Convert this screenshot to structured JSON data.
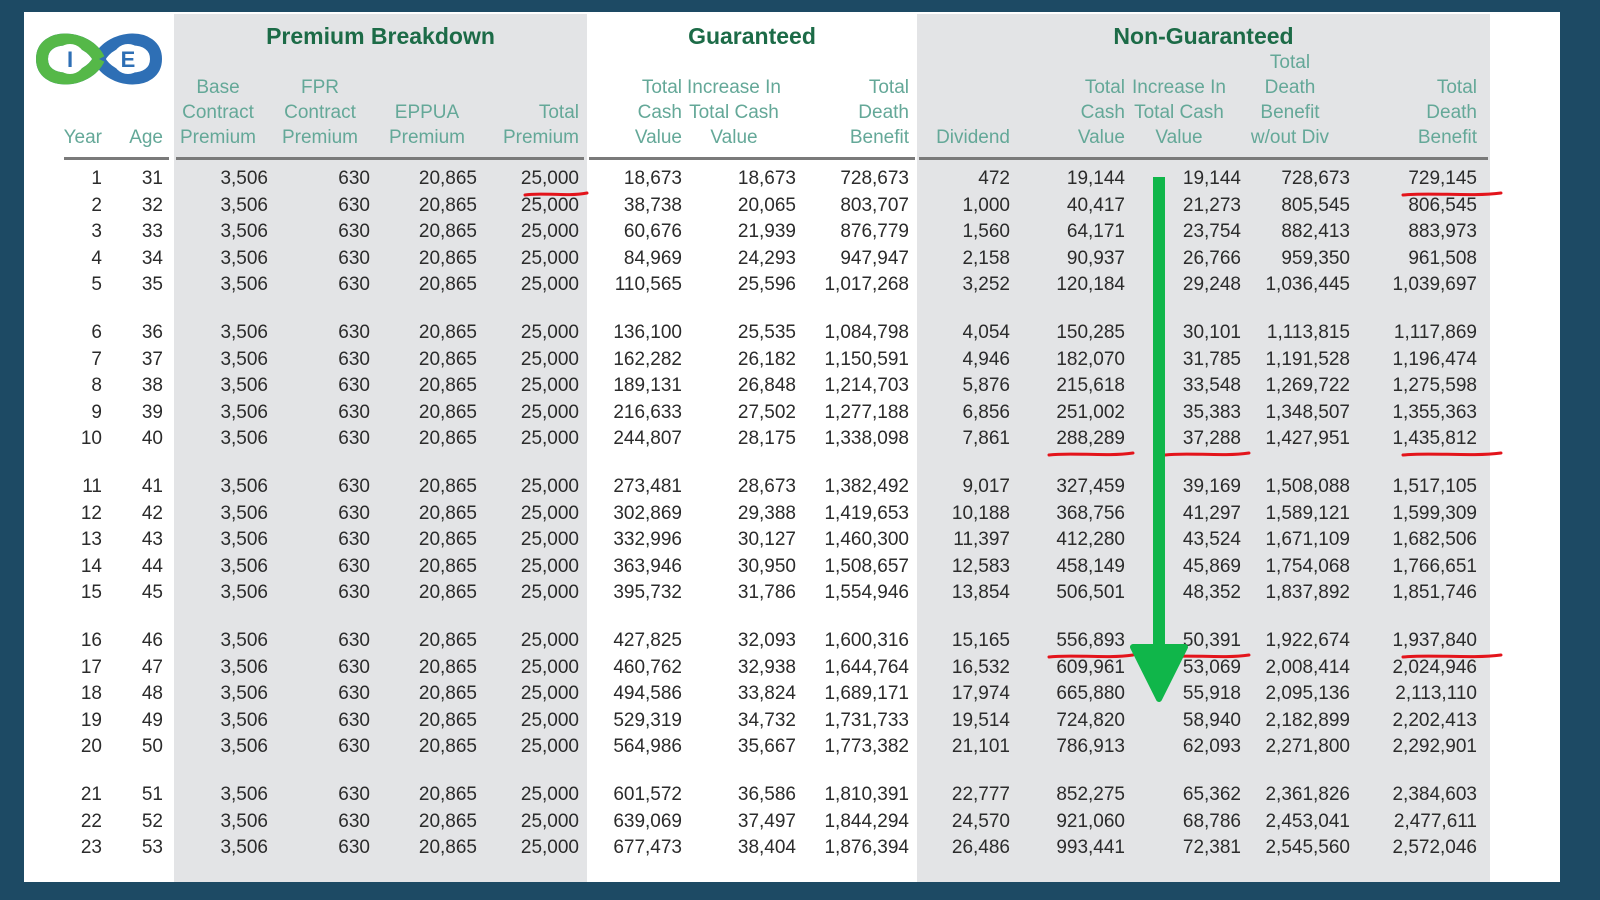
{
  "group_headers": {
    "premium": "Premium Breakdown",
    "guaranteed": "Guaranteed",
    "non_guaranteed": "Non-Guaranteed"
  },
  "logo": {
    "left_letter": "I",
    "right_letter": "E"
  },
  "columns": [
    {
      "key": "year",
      "label": "Year"
    },
    {
      "key": "age",
      "label": "Age"
    },
    {
      "key": "base",
      "label": "Base\nContract\nPremium"
    },
    {
      "key": "fpr",
      "label": "FPR\nContract\nPremium"
    },
    {
      "key": "eppua",
      "label": "EPPUA\nPremium"
    },
    {
      "key": "total_premium",
      "label": "Total\nPremium"
    },
    {
      "key": "g_cash",
      "label": "Total\nCash\nValue"
    },
    {
      "key": "g_increase",
      "label": "Increase In\nTotal Cash\nValue"
    },
    {
      "key": "g_death",
      "label": "Total\nDeath\nBenefit"
    },
    {
      "key": "dividend",
      "label": "Dividend"
    },
    {
      "key": "ng_cash",
      "label": "Total\nCash\nValue"
    },
    {
      "key": "ng_increase",
      "label": "Increase In\nTotal Cash\nValue"
    },
    {
      "key": "ng_death_wo_div",
      "label": "Total\nDeath\nBenefit\nw/out Div"
    },
    {
      "key": "ng_death",
      "label": "Total\nDeath\nBenefit"
    }
  ],
  "rows": [
    [
      "1",
      "31",
      "3,506",
      "630",
      "20,865",
      "25,000",
      "18,673",
      "18,673",
      "728,673",
      "472",
      "19,144",
      "19,144",
      "728,673",
      "729,145"
    ],
    [
      "2",
      "32",
      "3,506",
      "630",
      "20,865",
      "25,000",
      "38,738",
      "20,065",
      "803,707",
      "1,000",
      "40,417",
      "21,273",
      "805,545",
      "806,545"
    ],
    [
      "3",
      "33",
      "3,506",
      "630",
      "20,865",
      "25,000",
      "60,676",
      "21,939",
      "876,779",
      "1,560",
      "64,171",
      "23,754",
      "882,413",
      "883,973"
    ],
    [
      "4",
      "34",
      "3,506",
      "630",
      "20,865",
      "25,000",
      "84,969",
      "24,293",
      "947,947",
      "2,158",
      "90,937",
      "26,766",
      "959,350",
      "961,508"
    ],
    [
      "5",
      "35",
      "3,506",
      "630",
      "20,865",
      "25,000",
      "110,565",
      "25,596",
      "1,017,268",
      "3,252",
      "120,184",
      "29,248",
      "1,036,445",
      "1,039,697"
    ],
    [
      "6",
      "36",
      "3,506",
      "630",
      "20,865",
      "25,000",
      "136,100",
      "25,535",
      "1,084,798",
      "4,054",
      "150,285",
      "30,101",
      "1,113,815",
      "1,117,869"
    ],
    [
      "7",
      "37",
      "3,506",
      "630",
      "20,865",
      "25,000",
      "162,282",
      "26,182",
      "1,150,591",
      "4,946",
      "182,070",
      "31,785",
      "1,191,528",
      "1,196,474"
    ],
    [
      "8",
      "38",
      "3,506",
      "630",
      "20,865",
      "25,000",
      "189,131",
      "26,848",
      "1,214,703",
      "5,876",
      "215,618",
      "33,548",
      "1,269,722",
      "1,275,598"
    ],
    [
      "9",
      "39",
      "3,506",
      "630",
      "20,865",
      "25,000",
      "216,633",
      "27,502",
      "1,277,188",
      "6,856",
      "251,002",
      "35,383",
      "1,348,507",
      "1,355,363"
    ],
    [
      "10",
      "40",
      "3,506",
      "630",
      "20,865",
      "25,000",
      "244,807",
      "28,175",
      "1,338,098",
      "7,861",
      "288,289",
      "37,288",
      "1,427,951",
      "1,435,812"
    ],
    [
      "11",
      "41",
      "3,506",
      "630",
      "20,865",
      "25,000",
      "273,481",
      "28,673",
      "1,382,492",
      "9,017",
      "327,459",
      "39,169",
      "1,508,088",
      "1,517,105"
    ],
    [
      "12",
      "42",
      "3,506",
      "630",
      "20,865",
      "25,000",
      "302,869",
      "29,388",
      "1,419,653",
      "10,188",
      "368,756",
      "41,297",
      "1,589,121",
      "1,599,309"
    ],
    [
      "13",
      "43",
      "3,506",
      "630",
      "20,865",
      "25,000",
      "332,996",
      "30,127",
      "1,460,300",
      "11,397",
      "412,280",
      "43,524",
      "1,671,109",
      "1,682,506"
    ],
    [
      "14",
      "44",
      "3,506",
      "630",
      "20,865",
      "25,000",
      "363,946",
      "30,950",
      "1,508,657",
      "12,583",
      "458,149",
      "45,869",
      "1,754,068",
      "1,766,651"
    ],
    [
      "15",
      "45",
      "3,506",
      "630",
      "20,865",
      "25,000",
      "395,732",
      "31,786",
      "1,554,946",
      "13,854",
      "506,501",
      "48,352",
      "1,837,892",
      "1,851,746"
    ],
    [
      "16",
      "46",
      "3,506",
      "630",
      "20,865",
      "25,000",
      "427,825",
      "32,093",
      "1,600,316",
      "15,165",
      "556,893",
      "50,391",
      "1,922,674",
      "1,937,840"
    ],
    [
      "17",
      "47",
      "3,506",
      "630",
      "20,865",
      "25,000",
      "460,762",
      "32,938",
      "1,644,764",
      "16,532",
      "609,961",
      "53,069",
      "2,008,414",
      "2,024,946"
    ],
    [
      "18",
      "48",
      "3,506",
      "630",
      "20,865",
      "25,000",
      "494,586",
      "33,824",
      "1,689,171",
      "17,974",
      "665,880",
      "55,918",
      "2,095,136",
      "2,113,110"
    ],
    [
      "19",
      "49",
      "3,506",
      "630",
      "20,865",
      "25,000",
      "529,319",
      "34,732",
      "1,731,733",
      "19,514",
      "724,820",
      "58,940",
      "2,182,899",
      "2,202,413"
    ],
    [
      "20",
      "50",
      "3,506",
      "630",
      "20,865",
      "25,000",
      "564,986",
      "35,667",
      "1,773,382",
      "21,101",
      "786,913",
      "62,093",
      "2,271,800",
      "2,292,901"
    ],
    [
      "21",
      "51",
      "3,506",
      "630",
      "20,865",
      "25,000",
      "601,572",
      "36,586",
      "1,810,391",
      "22,777",
      "852,275",
      "65,362",
      "2,361,826",
      "2,384,603"
    ],
    [
      "22",
      "52",
      "3,506",
      "630",
      "20,865",
      "25,000",
      "639,069",
      "37,497",
      "1,844,294",
      "24,570",
      "921,060",
      "68,786",
      "2,453,041",
      "2,477,611"
    ],
    [
      "23",
      "53",
      "3,506",
      "630",
      "20,865",
      "25,000",
      "677,473",
      "38,404",
      "1,876,394",
      "26,486",
      "993,441",
      "72,381",
      "2,545,560",
      "2,572,046"
    ]
  ],
  "highlights": {
    "underline_color": "#e3141b",
    "arrow_color": "#10b64a",
    "underlined_cells": [
      {
        "row": 1,
        "column": "total_premium"
      },
      {
        "row": 1,
        "column": "ng_death"
      },
      {
        "row": 10,
        "column": "ng_cash"
      },
      {
        "row": 10,
        "column": "ng_increase"
      },
      {
        "row": 10,
        "column": "ng_death"
      },
      {
        "row": 16,
        "column": "ng_cash"
      },
      {
        "row": 16,
        "column": "ng_increase"
      },
      {
        "row": 16,
        "column": "ng_death"
      }
    ]
  }
}
